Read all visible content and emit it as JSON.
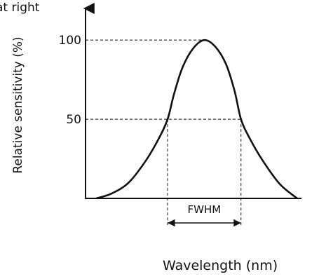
{
  "caption": "at right",
  "chart_data": {
    "type": "line",
    "title": "",
    "xlabel": "Wavelength (nm)",
    "ylabel": "Relative sensitivity (%)",
    "yticks": [
      {
        "value": 100,
        "label": "100"
      },
      {
        "value": 50,
        "label": "50"
      }
    ],
    "ylim": [
      0,
      120
    ],
    "xlim": [
      0,
      10
    ],
    "series": [
      {
        "values": [
          [
            0.5,
            0
          ],
          [
            1.2,
            3
          ],
          [
            2,
            10
          ],
          [
            2.8,
            24
          ],
          [
            3.4,
            38
          ],
          [
            3.8,
            50
          ],
          [
            4.1,
            66
          ],
          [
            4.5,
            83
          ],
          [
            5.0,
            95
          ],
          [
            5.5,
            100
          ],
          [
            6.0,
            96
          ],
          [
            6.5,
            85
          ],
          [
            6.9,
            68
          ],
          [
            7.2,
            50
          ],
          [
            7.6,
            38
          ],
          [
            8.2,
            24
          ],
          [
            9.0,
            9
          ],
          [
            9.8,
            0
          ]
        ]
      }
    ],
    "annotations": [
      {
        "type": "fwhm-span",
        "label": "FWHM",
        "x_start": 3.8,
        "x_end": 7.2
      }
    ],
    "grid": false,
    "legend": "none"
  }
}
